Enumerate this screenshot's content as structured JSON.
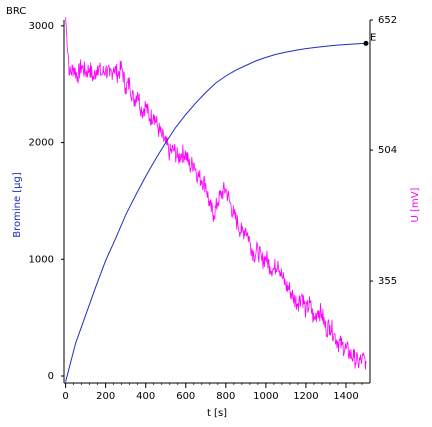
{
  "chart_data": {
    "type": "line",
    "title": "BRC",
    "xlabel": "t [s]",
    "ylabel_left": "Bromine [µg]",
    "ylabel_right": "U [mV]",
    "xlim": [
      -8,
      1520
    ],
    "ylim_left": [
      -60,
      3050
    ],
    "ylim_right": [
      239,
      652
    ],
    "x_ticks": [
      0,
      200,
      400,
      600,
      800,
      1000,
      1200,
      1400
    ],
    "y_left_ticks": [
      0,
      1000,
      2000,
      3000
    ],
    "y_right_ticks": [
      355,
      504,
      652
    ],
    "grid": false,
    "colors": {
      "bromine": "#1f2fbf",
      "voltage": "#ff00ff",
      "axes": "#000000"
    },
    "end_marker": {
      "label": "E",
      "x": 1500,
      "y": 2850
    },
    "series": [
      {
        "name": "Bromine [µg]",
        "axis": "left",
        "x": [
          0,
          50,
          100,
          150,
          200,
          250,
          300,
          350,
          400,
          450,
          500,
          550,
          600,
          650,
          700,
          750,
          800,
          850,
          900,
          950,
          1000,
          1050,
          1100,
          1150,
          1200,
          1250,
          1300,
          1350,
          1400,
          1450,
          1500
        ],
        "values": [
          -50,
          280,
          520,
          760,
          990,
          1180,
          1380,
          1550,
          1710,
          1860,
          2000,
          2130,
          2240,
          2340,
          2430,
          2510,
          2570,
          2620,
          2660,
          2700,
          2730,
          2755,
          2775,
          2790,
          2805,
          2815,
          2825,
          2833,
          2840,
          2845,
          2850
        ]
      },
      {
        "name": "U [mV]",
        "axis": "right",
        "x": [
          0,
          20,
          40,
          60,
          80,
          100,
          120,
          140,
          160,
          180,
          200,
          220,
          240,
          260,
          280,
          300,
          320,
          340,
          360,
          380,
          400,
          420,
          440,
          460,
          480,
          500,
          520,
          540,
          560,
          580,
          600,
          620,
          640,
          660,
          680,
          700,
          720,
          740,
          760,
          780,
          800,
          820,
          840,
          860,
          880,
          900,
          920,
          940,
          960,
          980,
          1000,
          1020,
          1040,
          1060,
          1080,
          1100,
          1120,
          1140,
          1160,
          1180,
          1200,
          1220,
          1240,
          1260,
          1280,
          1300,
          1320,
          1340,
          1360,
          1380,
          1400,
          1420,
          1440,
          1460,
          1480,
          1500
        ],
        "values": [
          655,
          590,
          598,
          588,
          600,
          592,
          597,
          585,
          600,
          590,
          596,
          588,
          598,
          590,
          598,
          575,
          580,
          560,
          570,
          548,
          555,
          540,
          545,
          530,
          520,
          512,
          500,
          505,
          495,
          500,
          500,
          485,
          490,
          475,
          470,
          465,
          440,
          430,
          445,
          455,
          460,
          445,
          430,
          420,
          410,
          415,
          400,
          385,
          390,
          378,
          382,
          372,
          368,
          378,
          360,
          350,
          345,
          335,
          330,
          340,
          320,
          330,
          310,
          322,
          318,
          300,
          305,
          295,
          285,
          282,
          278,
          272,
          268,
          262,
          266,
          264
        ]
      }
    ]
  }
}
